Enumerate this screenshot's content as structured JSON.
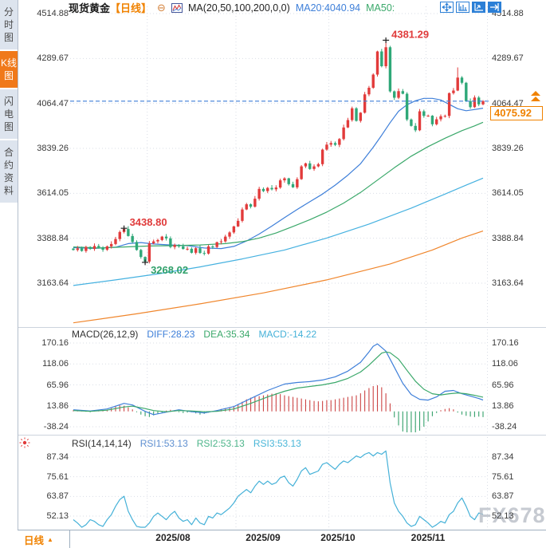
{
  "sidebar": {
    "tabs": [
      {
        "label": "分时图",
        "active": false
      },
      {
        "label": "K线图",
        "active": true
      },
      {
        "label": "闪电图",
        "active": false
      },
      {
        "label": "合约资料",
        "active": false
      }
    ]
  },
  "header": {
    "symbol": "现货黄金",
    "period": "【日线】",
    "ma_settings": "MA(20,50,100,200,0,0)",
    "ma20": "MA20:4040.94",
    "ma50": "MA50:"
  },
  "icons": {
    "collapse": "⊖",
    "dropdown_up": "▲"
  },
  "price_marker": {
    "value": "4075.92"
  },
  "bottom_bar": {
    "period": "日线"
  },
  "watermark": "FX678",
  "theme": {
    "grid": "#d9dde6",
    "up": "#e23b3b",
    "down": "#2fa878",
    "price_line": "#3e7fd9",
    "annotation_high": "#e03b3b",
    "annotation_low": "#2fa06a",
    "accent_orange": "#f08200"
  },
  "chart_data": [
    {
      "type": "candlestick",
      "title": "现货黄金 日线",
      "y_ticks": [
        4514.88,
        4289.67,
        4064.47,
        3839.26,
        3614.05,
        3388.84,
        3163.64
      ],
      "x_labels": [
        "2025/08",
        "2025/09",
        "2025/10",
        "2025/11"
      ],
      "month_start_indices": [
        18,
        39,
        61,
        84
      ],
      "current_price": 4075.92,
      "first_open": 3337,
      "closes": [
        3330,
        3338,
        3325,
        3345,
        3335,
        3350,
        3342,
        3331,
        3348,
        3360,
        3385,
        3420,
        3435,
        3400,
        3370,
        3330,
        3295,
        3272,
        3363,
        3373,
        3380,
        3397,
        3388,
        3345,
        3355,
        3348,
        3335,
        3336,
        3316,
        3339,
        3315,
        3312,
        3348,
        3345,
        3369,
        3373,
        3397,
        3418,
        3448,
        3476,
        3533,
        3559,
        3547,
        3587,
        3636,
        3625,
        3641,
        3634,
        3643,
        3679,
        3689,
        3660,
        3644,
        3685,
        3749,
        3764,
        3736,
        3749,
        3760,
        3833,
        3858,
        3866,
        3857,
        3886,
        3944,
        3981,
        4040,
        3977,
        4018,
        4110,
        4143,
        4209,
        4325,
        4251,
        4346,
        4125,
        4093,
        4126,
        4113,
        3984,
        3952,
        3930,
        4025,
        4002,
        4003,
        3960,
        3985,
        4000,
        4002,
        4116,
        4129,
        4194,
        4168,
        4076,
        4046,
        4094,
        4060,
        4075.92
      ],
      "overrides": {
        "12": {
          "high": 3438.8
        },
        "17": {
          "low": 3268.02
        },
        "74": {
          "high": 4381.29
        },
        "91": {
          "high": 4245
        }
      },
      "annotations": [
        {
          "index": 74,
          "value": 4381.29,
          "label": "4381.29",
          "type": "high",
          "color": "#e03b3b"
        },
        {
          "index": 12,
          "value": 3438.8,
          "label": "3438.80",
          "type": "high",
          "color": "#e03b3b"
        },
        {
          "index": 17,
          "value": 3268.02,
          "label": "3268.02",
          "type": "low",
          "color": "#2fa06a"
        }
      ],
      "overlays": [
        {
          "name": "MA20",
          "color": "#3e7fd9",
          "points": [
            [
              0,
              3342
            ],
            [
              5,
              3338
            ],
            [
              10,
              3344
            ],
            [
              13,
              3362
            ],
            [
              16,
              3367
            ],
            [
              19,
              3360
            ],
            [
              23,
              3355
            ],
            [
              27,
              3352
            ],
            [
              31,
              3340
            ],
            [
              35,
              3337
            ],
            [
              38,
              3348
            ],
            [
              41,
              3375
            ],
            [
              44,
              3410
            ],
            [
              47,
              3450
            ],
            [
              50,
              3492
            ],
            [
              53,
              3533
            ],
            [
              56,
              3572
            ],
            [
              59,
              3610
            ],
            [
              62,
              3655
            ],
            [
              65,
              3705
            ],
            [
              68,
              3762
            ],
            [
              71,
              3845
            ],
            [
              73,
              3905
            ],
            [
              75,
              3968
            ],
            [
              77,
              4025
            ],
            [
              79,
              4058
            ],
            [
              81,
              4078
            ],
            [
              83,
              4090
            ],
            [
              85,
              4090
            ],
            [
              87,
              4082
            ],
            [
              89,
              4060
            ],
            [
              91,
              4038
            ],
            [
              93,
              4028
            ],
            [
              95,
              4034
            ],
            [
              97,
              4040.94
            ]
          ]
        },
        {
          "name": "MA50",
          "color": "#3aa86a",
          "points": [
            [
              0,
              3345
            ],
            [
              6,
              3340
            ],
            [
              12,
              3345
            ],
            [
              18,
              3350
            ],
            [
              24,
              3352
            ],
            [
              30,
              3355
            ],
            [
              36,
              3362
            ],
            [
              40,
              3372
            ],
            [
              44,
              3390
            ],
            [
              48,
              3415
            ],
            [
              52,
              3448
            ],
            [
              56,
              3482
            ],
            [
              60,
              3520
            ],
            [
              64,
              3565
            ],
            [
              68,
              3618
            ],
            [
              72,
              3680
            ],
            [
              76,
              3742
            ],
            [
              80,
              3800
            ],
            [
              84,
              3848
            ],
            [
              88,
              3890
            ],
            [
              92,
              3928
            ],
            [
              95,
              3952
            ],
            [
              97,
              3970
            ]
          ]
        },
        {
          "name": "MA100",
          "color": "#45b1e0",
          "points": [
            [
              0,
              3152
            ],
            [
              10,
              3180
            ],
            [
              20,
              3210
            ],
            [
              30,
              3245
            ],
            [
              40,
              3285
            ],
            [
              50,
              3330
            ],
            [
              60,
              3390
            ],
            [
              70,
              3460
            ],
            [
              80,
              3540
            ],
            [
              88,
              3610
            ],
            [
              93,
              3655
            ],
            [
              97,
              3690
            ]
          ]
        },
        {
          "name": "MA200",
          "color": "#f0862c",
          "points": [
            [
              0,
              2965
            ],
            [
              15,
              3010
            ],
            [
              30,
              3060
            ],
            [
              45,
              3115
            ],
            [
              60,
              3180
            ],
            [
              75,
              3260
            ],
            [
              85,
              3330
            ],
            [
              92,
              3390
            ],
            [
              97,
              3425
            ]
          ]
        }
      ]
    },
    {
      "type": "macd",
      "label": "MACD(26,12,9)",
      "diff_label": "DIFF:28.23",
      "dea_label": "DEA:35.34",
      "macd_label": "MACD:-14.22",
      "y_ticks": [
        170.16,
        118.06,
        65.96,
        13.86,
        -38.24
      ],
      "diff_color": "#3e7fd9",
      "dea_color": "#3aa86a",
      "hist_up": "#cc4444",
      "hist_down": "#33a06a",
      "histogram": [
        3,
        2,
        1,
        -1,
        -2,
        1,
        2,
        3,
        4,
        8,
        12,
        15,
        14,
        10,
        5,
        -2,
        -8,
        -12,
        -14,
        -10,
        -6,
        -3,
        2,
        4,
        3,
        -2,
        -4,
        -3,
        -2,
        -5,
        -8,
        -6,
        -3,
        -1,
        3,
        6,
        8,
        10,
        12,
        18,
        24,
        30,
        34,
        36,
        38,
        40,
        42,
        44,
        45,
        43,
        40,
        38,
        36,
        34,
        32,
        30,
        28,
        26,
        25,
        26,
        28,
        28,
        30,
        32,
        34,
        36,
        38,
        40,
        45,
        52,
        58,
        63,
        65,
        60,
        45,
        20,
        -15,
        -35,
        -50,
        -58,
        -60,
        -55,
        -48,
        -38,
        -25,
        -12,
        -4,
        3,
        6,
        8,
        5,
        -3,
        -8,
        -11,
        -13,
        -14,
        -13,
        -14.22
      ],
      "diff_points": [
        [
          0,
          4
        ],
        [
          4,
          1
        ],
        [
          8,
          6
        ],
        [
          12,
          20
        ],
        [
          14,
          16
        ],
        [
          17,
          0
        ],
        [
          19,
          -8
        ],
        [
          22,
          -2
        ],
        [
          25,
          4
        ],
        [
          28,
          -1
        ],
        [
          31,
          -4
        ],
        [
          34,
          2
        ],
        [
          38,
          12
        ],
        [
          42,
          32
        ],
        [
          46,
          52
        ],
        [
          50,
          68
        ],
        [
          53,
          72
        ],
        [
          56,
          74
        ],
        [
          59,
          78
        ],
        [
          62,
          86
        ],
        [
          65,
          100
        ],
        [
          68,
          122
        ],
        [
          70,
          148
        ],
        [
          71,
          162
        ],
        [
          72,
          168
        ],
        [
          74,
          150
        ],
        [
          76,
          110
        ],
        [
          78,
          70
        ],
        [
          80,
          42
        ],
        [
          82,
          30
        ],
        [
          84,
          28
        ],
        [
          86,
          36
        ],
        [
          88,
          50
        ],
        [
          90,
          52
        ],
        [
          92,
          44
        ],
        [
          94,
          38
        ],
        [
          96,
          32
        ],
        [
          97,
          28.23
        ]
      ],
      "dea_points": [
        [
          0,
          2
        ],
        [
          4,
          0
        ],
        [
          8,
          3
        ],
        [
          12,
          11
        ],
        [
          14,
          13
        ],
        [
          17,
          7
        ],
        [
          19,
          2
        ],
        [
          22,
          -1
        ],
        [
          25,
          2
        ],
        [
          28,
          1
        ],
        [
          31,
          -1
        ],
        [
          34,
          0
        ],
        [
          38,
          6
        ],
        [
          42,
          20
        ],
        [
          46,
          36
        ],
        [
          50,
          50
        ],
        [
          53,
          58
        ],
        [
          56,
          62
        ],
        [
          59,
          66
        ],
        [
          62,
          72
        ],
        [
          65,
          82
        ],
        [
          68,
          98
        ],
        [
          70,
          115
        ],
        [
          72,
          135
        ],
        [
          73,
          145
        ],
        [
          74,
          148
        ],
        [
          75,
          146
        ],
        [
          77,
          130
        ],
        [
          79,
          102
        ],
        [
          81,
          75
        ],
        [
          83,
          55
        ],
        [
          85,
          44
        ],
        [
          87,
          41
        ],
        [
          89,
          44
        ],
        [
          91,
          46
        ],
        [
          93,
          44
        ],
        [
          95,
          40
        ],
        [
          97,
          35.34
        ]
      ]
    },
    {
      "type": "line",
      "label": "RSI(14,14,14)",
      "rsi1_label": "RSI1:53.13",
      "rsi2_label": "RSI2:53.13",
      "rsi3_label": "RSI3:53.13",
      "y_ticks": [
        87.34,
        75.61,
        63.87,
        52.13
      ],
      "color": "#45b1d8",
      "values": [
        50,
        48,
        45,
        47,
        50,
        49,
        47,
        46,
        50,
        53,
        58,
        62,
        64,
        55,
        50,
        46,
        44,
        42,
        48,
        52,
        54,
        52,
        50,
        53,
        55,
        51,
        49,
        50,
        47,
        51,
        48,
        47,
        52,
        51,
        54,
        53,
        55,
        57,
        60,
        64,
        66,
        68,
        66,
        70,
        73,
        71,
        73,
        71,
        72,
        75,
        76,
        72,
        70,
        74,
        79,
        81,
        77,
        78,
        79,
        83,
        84,
        82,
        80,
        83,
        85,
        84,
        86,
        88,
        87,
        89,
        90,
        88,
        90,
        89,
        91,
        72,
        60,
        55,
        52,
        48,
        46,
        47,
        52,
        50,
        48,
        45,
        47,
        49,
        48,
        53,
        55,
        60,
        63,
        58,
        52,
        50,
        54,
        53.13
      ]
    }
  ]
}
